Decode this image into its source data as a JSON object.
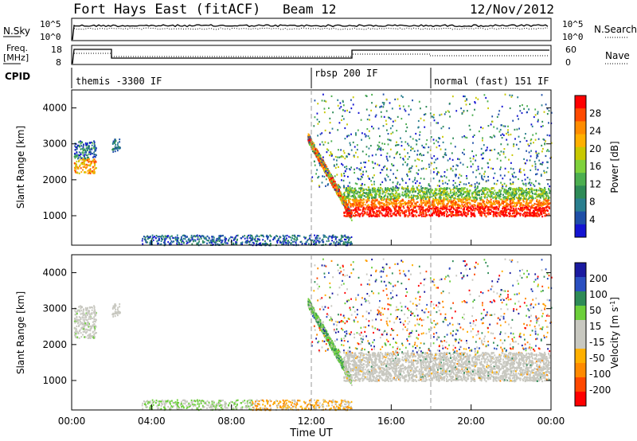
{
  "header": {
    "title": "Fort Hays East (fitACF)",
    "beam": "Beam 12",
    "date": "12/Nov/2012"
  },
  "top_panels": {
    "nsky_label": "N.Sky",
    "nsearch_label": "N.Search",
    "freq_label_1": "Freq.",
    "freq_label_2": "[MHz]",
    "nave_label": "Nave",
    "cpid_label": "CPID",
    "nsky_ticks": [
      "10^5",
      "10^0"
    ],
    "nsearch_ticks": [
      "10^5",
      "10^0"
    ],
    "freq_ticks": [
      "18",
      "8"
    ],
    "nave_ticks": [
      "60",
      "0"
    ],
    "cpid_segments": [
      {
        "start_hour": 0,
        "label": "themis -3300 IF"
      },
      {
        "start_hour": 12,
        "label": "rbsp 200 IF"
      },
      {
        "start_hour": 18,
        "label": "normal (fast) 151 IF"
      }
    ]
  },
  "chart_data": [
    {
      "type": "heatmap",
      "name": "power",
      "ylabel": "Slant Range [km]",
      "xlabel": "Time UT",
      "x_ticks": [
        "00:00",
        "04:00",
        "08:00",
        "12:00",
        "16:00",
        "20:00",
        "00:00"
      ],
      "xlim_hours": [
        0,
        24
      ],
      "ylim_km": [
        180,
        4500
      ],
      "y_ticks": [
        1000,
        2000,
        3000,
        4000
      ],
      "colorbar": {
        "label": "Power [dB]",
        "ticks": [
          "28",
          "24",
          "20",
          "16",
          "12",
          "8",
          "4"
        ],
        "colors": [
          "#ff0000",
          "#ff4a00",
          "#ff8c00",
          "#ffb000",
          "#c8c800",
          "#7fd23c",
          "#4caf50",
          "#2e8b57",
          "#2a7f8f",
          "#1f4fa8",
          "#1414d2"
        ]
      }
    },
    {
      "type": "heatmap",
      "name": "velocity",
      "ylabel": "Slant Range [km]",
      "xlabel": "Time UT",
      "x_ticks": [
        "00:00",
        "04:00",
        "08:00",
        "12:00",
        "16:00",
        "20:00",
        "00:00"
      ],
      "xlim_hours": [
        0,
        24
      ],
      "ylim_km": [
        180,
        4500
      ],
      "y_ticks": [
        1000,
        2000,
        3000,
        4000
      ],
      "colorbar": {
        "label_main": "Velocity [m s",
        "label_sup": "-1",
        "label_end": "]",
        "ticks": [
          "200",
          "100",
          "50",
          "15",
          "-15",
          "-50",
          "-100",
          "-200"
        ],
        "colors": [
          "#1a1aa0",
          "#2a4fc0",
          "#2e8b57",
          "#6ccf3a",
          "#c8c8c0",
          "#c8c8c0",
          "#ffb000",
          "#ff8a00",
          "#ff4800",
          "#ff0000"
        ]
      }
    }
  ],
  "xaxis_title": "Time UT"
}
